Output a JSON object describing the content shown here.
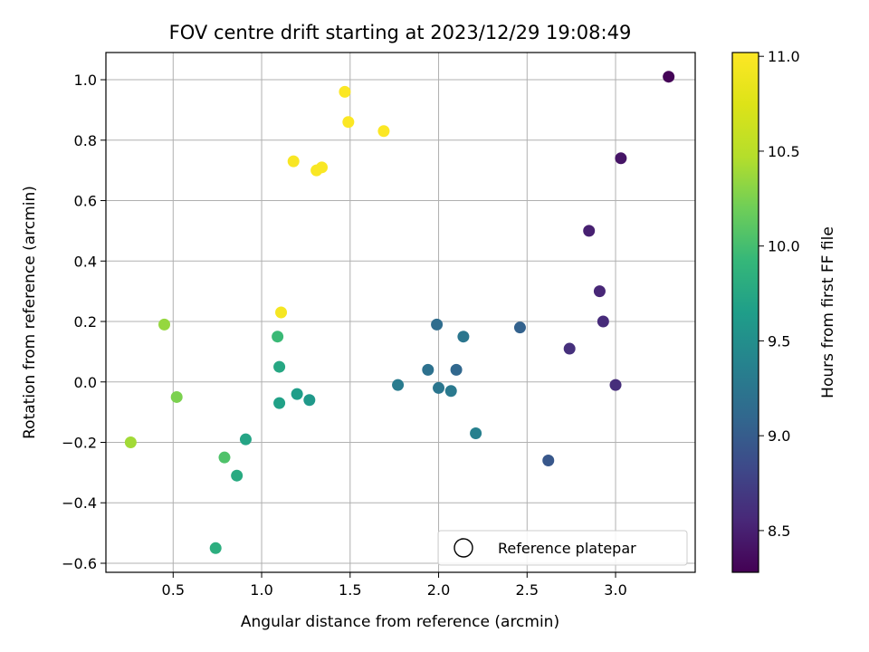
{
  "chart_data": {
    "type": "scatter",
    "title": "FOV centre drift starting at 2023/12/29 19:08:49",
    "xlabel": "Angular distance from reference (arcmin)",
    "ylabel": "Rotation from reference (arcmin)",
    "xlim": [
      0.12,
      3.45
    ],
    "ylim": [
      -0.63,
      1.09
    ],
    "xticks": [
      0.5,
      1.0,
      1.5,
      2.0,
      2.5,
      3.0
    ],
    "xtick_labels": [
      "0.5",
      "1.0",
      "1.5",
      "2.0",
      "2.5",
      "3.0"
    ],
    "yticks": [
      -0.6,
      -0.4,
      -0.2,
      0.0,
      0.2,
      0.4,
      0.6,
      0.8,
      1.0
    ],
    "ytick_labels": [
      "−0.6",
      "−0.4",
      "−0.2",
      "0.0",
      "0.2",
      "0.4",
      "0.6",
      "0.8",
      "1.0"
    ],
    "grid": true,
    "legend": {
      "placement": "lower-right",
      "entries": [
        "Reference platepar"
      ]
    },
    "colorbar": {
      "label": "Hours from first FF file",
      "colormap": "viridis",
      "range": [
        8.28,
        11.02
      ],
      "ticks": [
        8.5,
        9.0,
        9.5,
        10.0,
        10.5,
        11.0
      ],
      "tick_labels": [
        "8.5",
        "9.0",
        "9.5",
        "10.0",
        "10.5",
        "11.0"
      ]
    },
    "points": [
      {
        "x": 3.3,
        "y": 1.01,
        "hours": 8.3
      },
      {
        "x": 3.03,
        "y": 0.74,
        "hours": 8.42
      },
      {
        "x": 2.85,
        "y": 0.5,
        "hours": 8.5
      },
      {
        "x": 2.91,
        "y": 0.3,
        "hours": 8.55
      },
      {
        "x": 2.93,
        "y": 0.2,
        "hours": 8.58
      },
      {
        "x": 2.74,
        "y": 0.11,
        "hours": 8.62
      },
      {
        "x": 3.0,
        "y": -0.01,
        "hours": 8.6
      },
      {
        "x": 2.62,
        "y": -0.26,
        "hours": 8.95
      },
      {
        "x": 2.46,
        "y": 0.18,
        "hours": 9.05
      },
      {
        "x": 2.1,
        "y": 0.04,
        "hours": 9.1
      },
      {
        "x": 1.99,
        "y": 0.19,
        "hours": 9.15
      },
      {
        "x": 2.14,
        "y": 0.15,
        "hours": 9.25
      },
      {
        "x": 1.94,
        "y": 0.04,
        "hours": 9.2
      },
      {
        "x": 2.0,
        "y": -0.02,
        "hours": 9.25
      },
      {
        "x": 2.07,
        "y": -0.03,
        "hours": 9.28
      },
      {
        "x": 1.77,
        "y": -0.01,
        "hours": 9.3
      },
      {
        "x": 2.21,
        "y": -0.17,
        "hours": 9.35
      },
      {
        "x": 1.27,
        "y": -0.06,
        "hours": 9.6
      },
      {
        "x": 1.2,
        "y": -0.04,
        "hours": 9.65
      },
      {
        "x": 1.1,
        "y": -0.07,
        "hours": 9.68
      },
      {
        "x": 1.1,
        "y": 0.05,
        "hours": 9.75
      },
      {
        "x": 0.91,
        "y": -0.19,
        "hours": 9.72
      },
      {
        "x": 0.86,
        "y": -0.31,
        "hours": 9.78
      },
      {
        "x": 0.74,
        "y": -0.55,
        "hours": 9.82
      },
      {
        "x": 1.09,
        "y": 0.15,
        "hours": 9.95
      },
      {
        "x": 0.79,
        "y": -0.25,
        "hours": 10.05
      },
      {
        "x": 0.52,
        "y": -0.05,
        "hours": 10.25
      },
      {
        "x": 0.45,
        "y": 0.19,
        "hours": 10.35
      },
      {
        "x": 0.26,
        "y": -0.2,
        "hours": 10.4
      },
      {
        "x": 1.11,
        "y": 0.23,
        "hours": 10.95
      },
      {
        "x": 1.18,
        "y": 0.73,
        "hours": 10.98
      },
      {
        "x": 1.31,
        "y": 0.7,
        "hours": 10.99
      },
      {
        "x": 1.34,
        "y": 0.71,
        "hours": 10.99
      },
      {
        "x": 1.49,
        "y": 0.86,
        "hours": 11.0
      },
      {
        "x": 1.47,
        "y": 0.96,
        "hours": 11.0
      },
      {
        "x": 1.69,
        "y": 0.83,
        "hours": 11.0
      }
    ]
  }
}
